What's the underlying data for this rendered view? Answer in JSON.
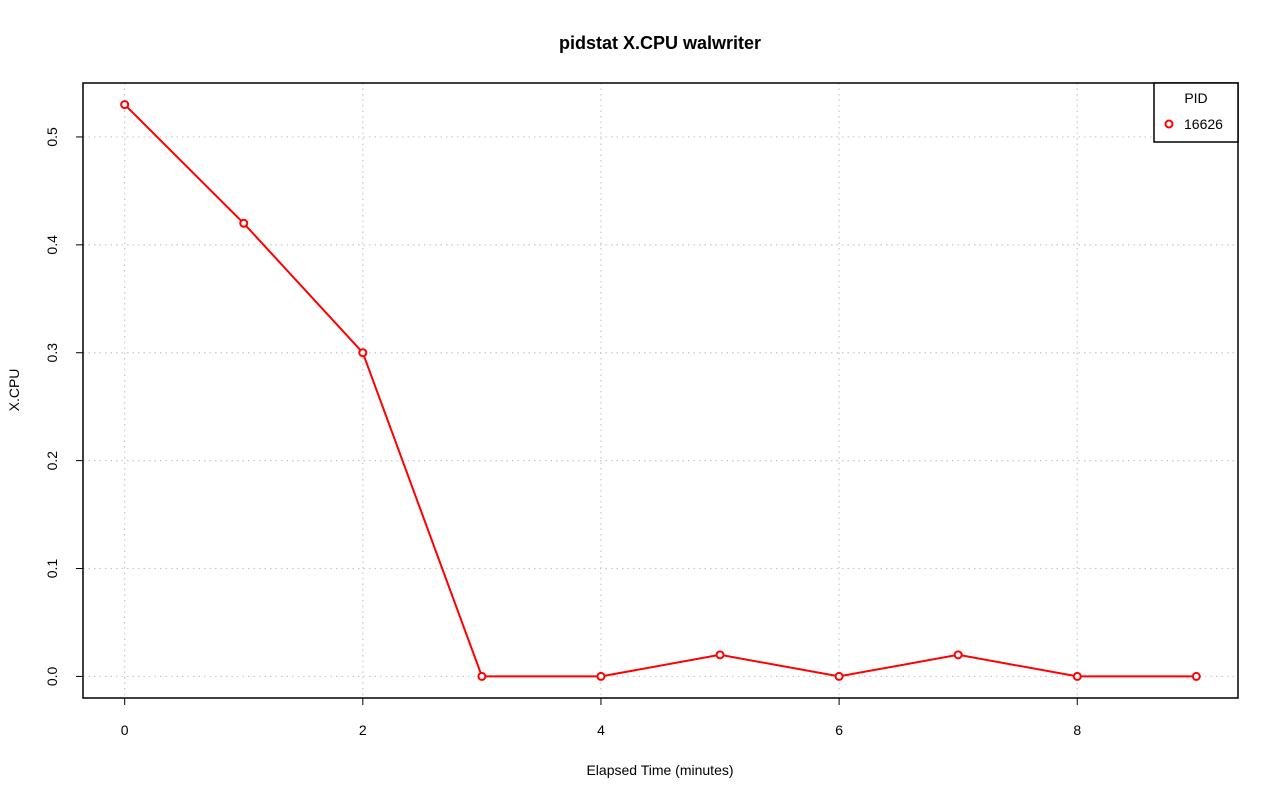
{
  "chart_data": {
    "type": "line",
    "title": "pidstat X.CPU walwriter",
    "xlabel": "Elapsed Time (minutes)",
    "ylabel": "X.CPU",
    "xlim": [
      -0.35,
      9.35
    ],
    "ylim": [
      -0.02,
      0.55
    ],
    "x_ticks": [
      0,
      2,
      4,
      6,
      8
    ],
    "y_ticks": [
      0.0,
      0.1,
      0.2,
      0.3,
      0.4,
      0.5
    ],
    "x_tick_labels": [
      "0",
      "2",
      "4",
      "6",
      "8"
    ],
    "y_tick_labels": [
      "0.0",
      "0.1",
      "0.2",
      "0.3",
      "0.4",
      "0.5"
    ],
    "grid": true,
    "legend": {
      "title": "PID",
      "placement": "top-right"
    },
    "series": [
      {
        "name": "16626",
        "color": "#ff0000",
        "x": [
          0,
          1,
          2,
          3,
          4,
          5,
          6,
          7,
          8,
          9
        ],
        "y": [
          0.53,
          0.42,
          0.3,
          0.0,
          0.0,
          0.02,
          0.0,
          0.02,
          0.0,
          0.0
        ]
      }
    ]
  }
}
